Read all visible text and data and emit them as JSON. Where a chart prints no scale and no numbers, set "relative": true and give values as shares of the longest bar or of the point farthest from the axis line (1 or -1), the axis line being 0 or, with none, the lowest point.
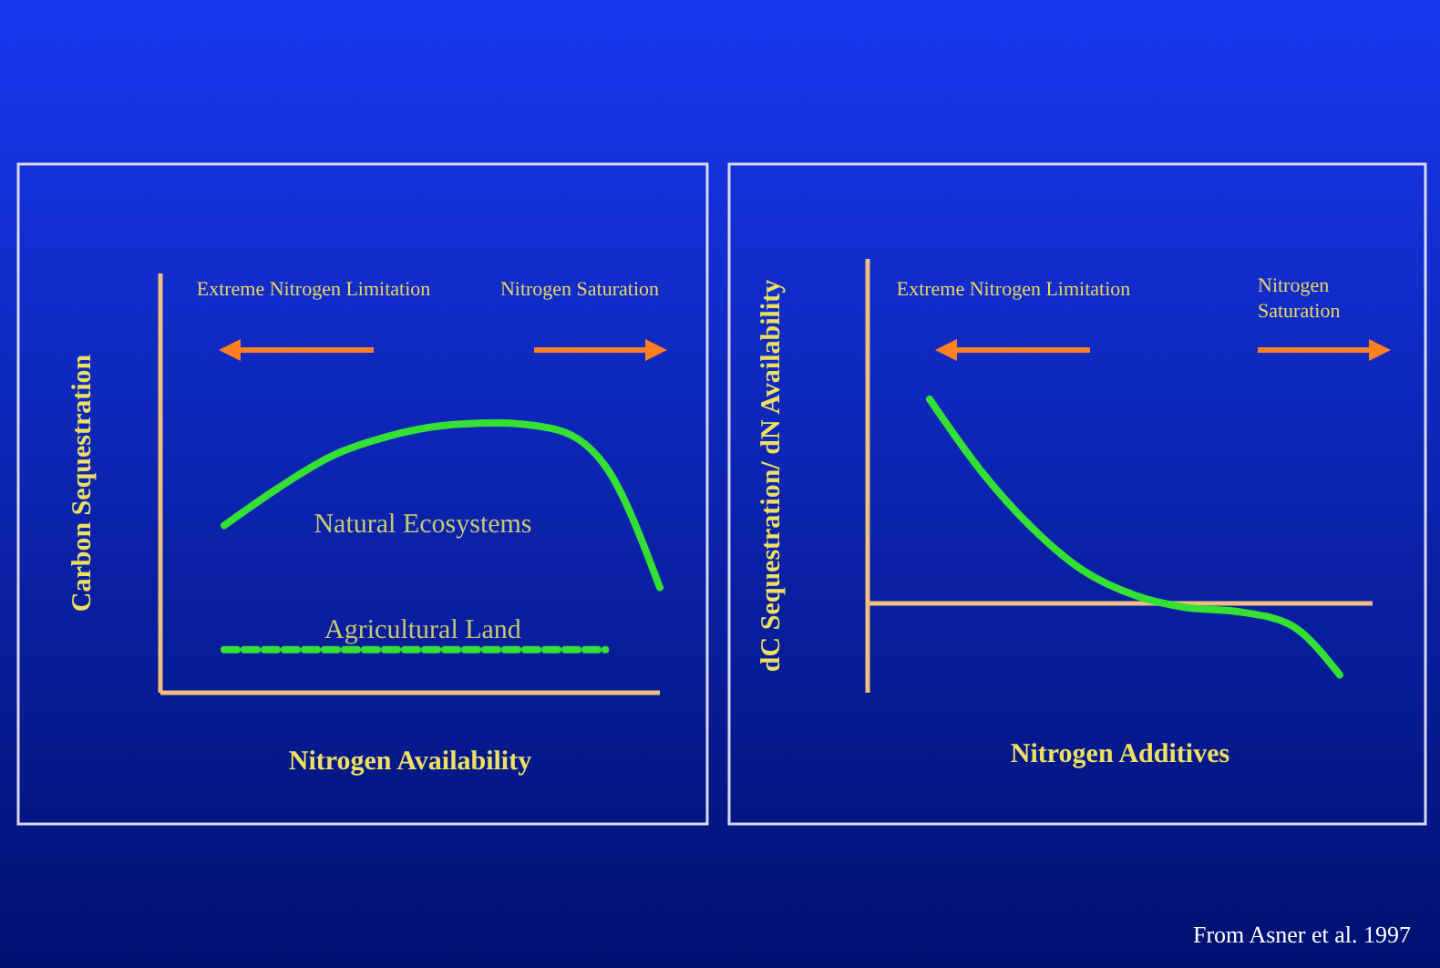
{
  "chart_data": [
    {
      "type": "line",
      "relative": true,
      "ylabel": "Carbon Sequestration",
      "xlabel": "Nitrogen Availability",
      "categories": [
        null,
        null,
        null,
        null,
        null,
        null,
        null,
        null,
        null
      ],
      "marker": "none",
      "annotations": [
        "Extreme Nitrogen Limitation",
        "Nitrogen Saturation"
      ],
      "series": [
        {
          "name": "Natural Ecosystems",
          "color": "#33e033",
          "line_style": "solid",
          "values": [
            0.62,
            0.76,
            0.88,
            0.95,
            0.99,
            1,
            0.98,
            0.84,
            0.39
          ]
        },
        {
          "name": "Agricultural Land",
          "color": "#33e033",
          "line_style": "dashed",
          "values": [
            0.16,
            0.16,
            0.16,
            0.16,
            0.16,
            0.16,
            0.16,
            0.16,
            null
          ]
        }
      ]
    },
    {
      "type": "line",
      "relative": true,
      "ylabel": "dC Sequestration/ dN Availability",
      "xlabel": "Nitrogen Additives",
      "categories": [
        null,
        null,
        null,
        null,
        null,
        null,
        null,
        null,
        null
      ],
      "ref_lines": [
        {
          "axis": "y",
          "value": 0,
          "color": "#f0c080"
        }
      ],
      "marker": "none",
      "annotations": [
        "Extreme Nitrogen Limitation",
        "Nitrogen Saturation",
        "From Asner et al. 1997"
      ],
      "series": [
        {
          "color": "#33e033",
          "line_style": "solid",
          "values": [
            1,
            0.65,
            0.37,
            0.16,
            0.04,
            -0.02,
            -0.04,
            -0.1,
            -0.35
          ]
        }
      ]
    }
  ]
}
